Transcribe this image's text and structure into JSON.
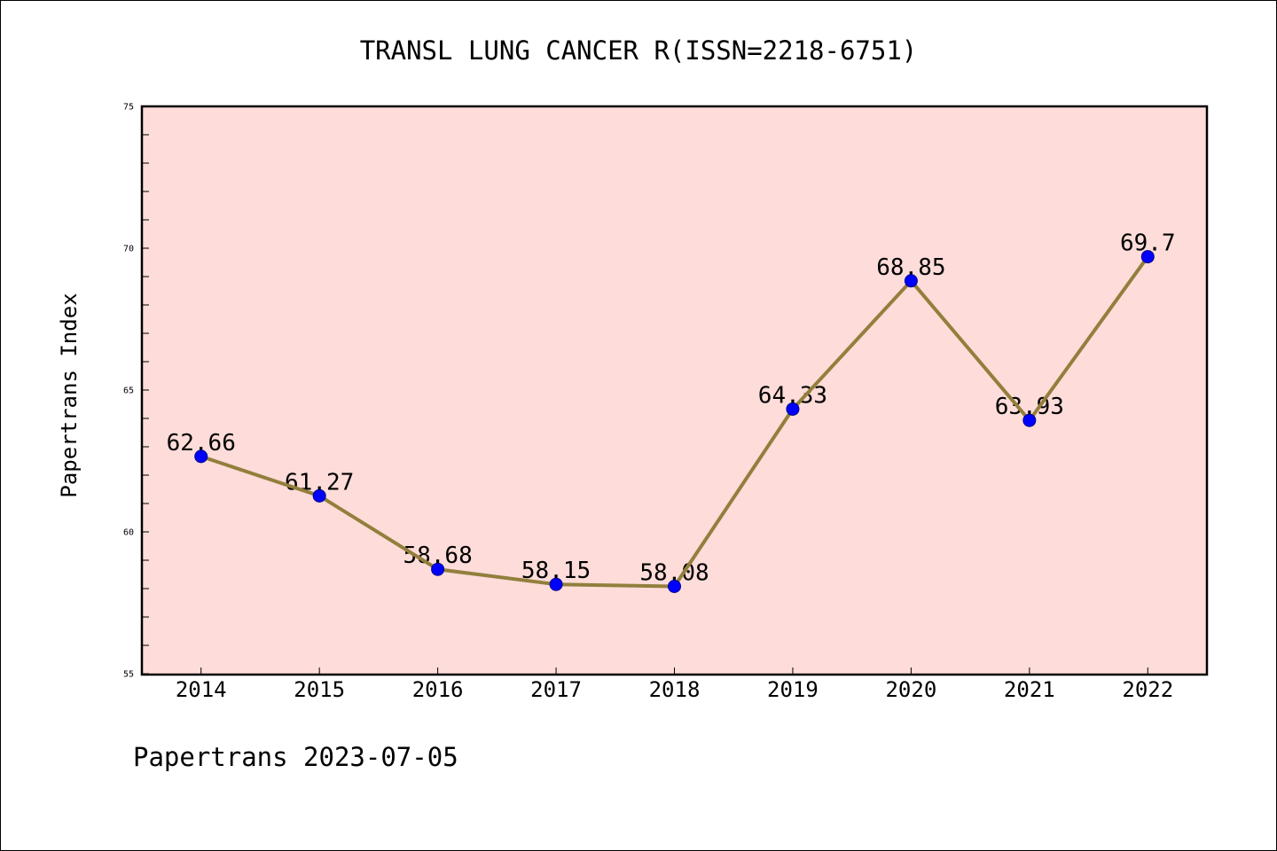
{
  "credit": "Papertrans 2023-07-05",
  "colors": {
    "plot_background": "#fddcd9",
    "line": "#927f3c",
    "marker": "#0000ff",
    "marker_edge": "#00008b",
    "frame": "#000000"
  },
  "chart_data": {
    "type": "line",
    "title": "TRANSL LUNG CANCER R(ISSN=2218-6751)",
    "xlabel": "",
    "ylabel": "Papertrans Index",
    "categories": [
      "2014",
      "2015",
      "2016",
      "2017",
      "2018",
      "2019",
      "2020",
      "2021",
      "2022"
    ],
    "series": [
      {
        "values": [
          62.66,
          61.27,
          58.68,
          58.15,
          58.08,
          64.33,
          68.85,
          63.93,
          69.7
        ]
      }
    ],
    "ylim": [
      55,
      75
    ],
    "yticks": [
      55,
      60,
      65,
      70,
      75
    ],
    "yminor_step": 1,
    "data_labels": true,
    "markers": "circle",
    "grid": false,
    "legend": "none"
  }
}
